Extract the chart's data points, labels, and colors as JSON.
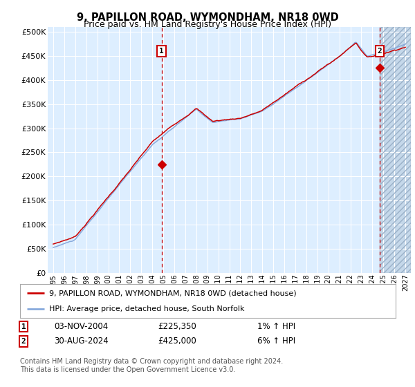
{
  "title": "9, PAPILLON ROAD, WYMONDHAM, NR18 0WD",
  "subtitle": "Price paid vs. HM Land Registry's House Price Index (HPI)",
  "ylabel_ticks": [
    "£0",
    "£50K",
    "£100K",
    "£150K",
    "£200K",
    "£250K",
    "£300K",
    "£350K",
    "£400K",
    "£450K",
    "£500K"
  ],
  "ytick_values": [
    0,
    50000,
    100000,
    150000,
    200000,
    250000,
    300000,
    350000,
    400000,
    450000,
    500000
  ],
  "ylim": [
    0,
    510000
  ],
  "xlim_start": 1994.5,
  "xlim_end": 2027.5,
  "xticks": [
    1995,
    1996,
    1997,
    1998,
    1999,
    2000,
    2001,
    2002,
    2003,
    2004,
    2005,
    2006,
    2007,
    2008,
    2009,
    2010,
    2011,
    2012,
    2013,
    2014,
    2015,
    2016,
    2017,
    2018,
    2019,
    2020,
    2021,
    2022,
    2023,
    2024,
    2025,
    2026,
    2027
  ],
  "hpi_color": "#88aadd",
  "price_color": "#cc0000",
  "transaction1_x": 2004.84,
  "transaction1_y": 225350,
  "transaction2_x": 2024.66,
  "transaction2_y": 425000,
  "legend_label1": "9, PAPILLON ROAD, WYMONDHAM, NR18 0WD (detached house)",
  "legend_label2": "HPI: Average price, detached house, South Norfolk",
  "annotation1_date": "03-NOV-2004",
  "annotation1_price": "£225,350",
  "annotation1_hpi": "1% ↑ HPI",
  "annotation2_date": "30-AUG-2024",
  "annotation2_price": "£425,000",
  "annotation2_hpi": "6% ↑ HPI",
  "footer": "Contains HM Land Registry data © Crown copyright and database right 2024.\nThis data is licensed under the Open Government Licence v3.0.",
  "bg_color": "#ddeeff",
  "grid_color": "#ffffff",
  "hatch_color": "#b0c4d8"
}
